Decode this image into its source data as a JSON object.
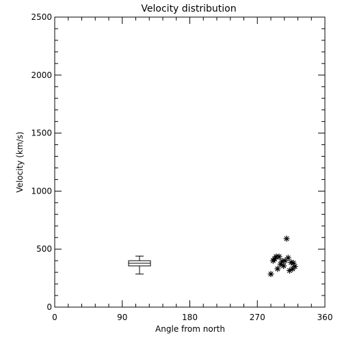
{
  "chart_data": {
    "type": "scatter",
    "title": "Velocity distribution",
    "xlabel": "Angle from north",
    "ylabel": "Velocity (km/s)",
    "xlim": [
      0,
      360
    ],
    "ylim": [
      0,
      2500
    ],
    "xticks": [
      0,
      90,
      180,
      270,
      360
    ],
    "yticks": [
      0,
      500,
      1000,
      1500,
      2000,
      2500
    ],
    "grid": false,
    "box": {
      "x": 113,
      "whisker_low": 285,
      "q1": 355,
      "median": 378,
      "q3": 400,
      "whisker_high": 440
    },
    "points": [
      {
        "x": 288,
        "y": 285
      },
      {
        "x": 291,
        "y": 400
      },
      {
        "x": 293,
        "y": 415
      },
      {
        "x": 295,
        "y": 435
      },
      {
        "x": 297,
        "y": 330
      },
      {
        "x": 299,
        "y": 435
      },
      {
        "x": 301,
        "y": 370
      },
      {
        "x": 303,
        "y": 395
      },
      {
        "x": 305,
        "y": 355
      },
      {
        "x": 307,
        "y": 400
      },
      {
        "x": 309,
        "y": 590
      },
      {
        "x": 311,
        "y": 425
      },
      {
        "x": 313,
        "y": 315
      },
      {
        "x": 315,
        "y": 385
      },
      {
        "x": 317,
        "y": 330
      },
      {
        "x": 318,
        "y": 380
      },
      {
        "x": 320,
        "y": 350
      }
    ]
  }
}
